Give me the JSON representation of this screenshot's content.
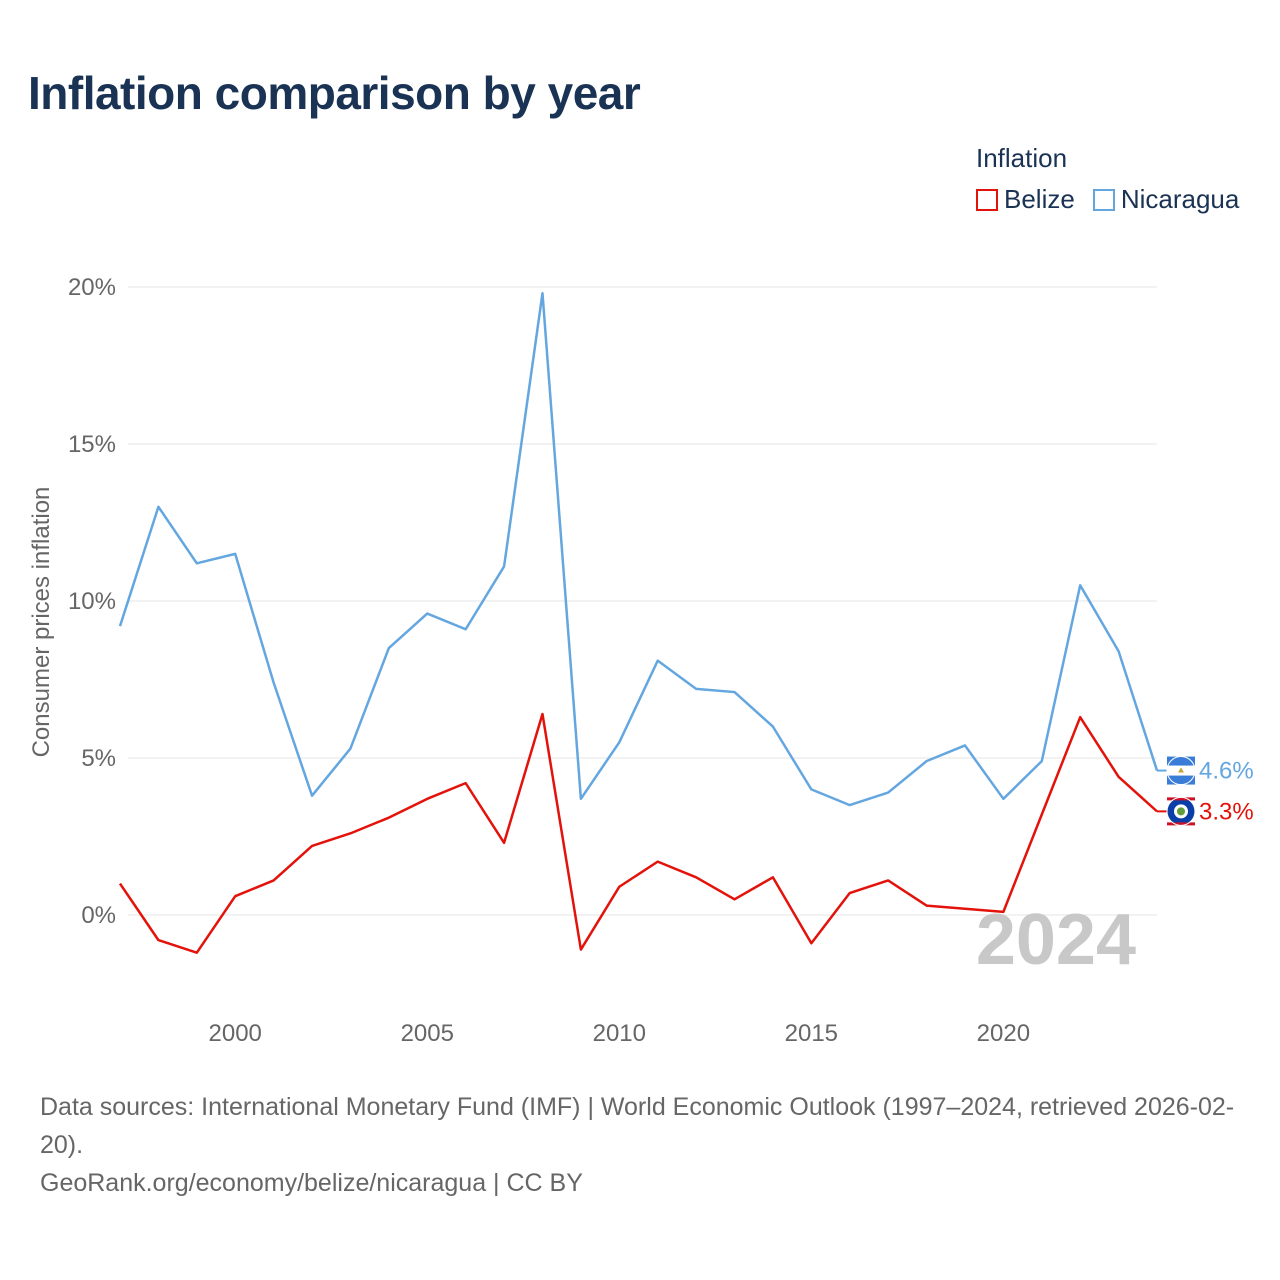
{
  "title": "Inflation comparison by year",
  "legend": {
    "title": "Inflation",
    "items": [
      {
        "name": "Belize",
        "color": "#e3120b"
      },
      {
        "name": "Nicaragua",
        "color": "#64a6e0"
      }
    ]
  },
  "footer": {
    "sources": "Data sources: International Monetary Fund (IMF) | World Economic Outlook (1997–2024, retrieved 2026-02-20).",
    "credit": "GeoRank.org/economy/belize/nicaragua | CC BY"
  },
  "chart_data": {
    "type": "line",
    "title": "Inflation comparison by year",
    "xlabel": "",
    "ylabel": "Consumer prices inflation",
    "xlim": [
      1997,
      2024
    ],
    "ylim": [
      -3,
      20
    ],
    "y_ticks": [
      0,
      5,
      10,
      15,
      20
    ],
    "y_tick_labels": [
      "0%",
      "5%",
      "10%",
      "15%",
      "20%"
    ],
    "x_ticks": [
      2000,
      2005,
      2010,
      2015,
      2020
    ],
    "x_tick_labels": [
      "2000",
      "2005",
      "2010",
      "2015",
      "2020"
    ],
    "year_watermark": "2024",
    "x": [
      1997,
      1998,
      1999,
      2000,
      2001,
      2002,
      2003,
      2004,
      2005,
      2006,
      2007,
      2008,
      2009,
      2010,
      2011,
      2012,
      2013,
      2014,
      2015,
      2016,
      2017,
      2018,
      2019,
      2020,
      2021,
      2022,
      2023,
      2024
    ],
    "series": [
      {
        "name": "Belize",
        "color": "#e3120b",
        "end_label": "3.3%",
        "values": [
          1.0,
          -0.8,
          -1.2,
          0.6,
          1.1,
          2.2,
          2.6,
          3.1,
          3.7,
          4.2,
          2.3,
          6.4,
          -1.1,
          0.9,
          1.7,
          1.2,
          0.5,
          1.2,
          -0.9,
          0.7,
          1.1,
          0.3,
          0.2,
          0.1,
          3.2,
          6.3,
          4.4,
          3.3
        ]
      },
      {
        "name": "Nicaragua",
        "color": "#64a6e0",
        "end_label": "4.6%",
        "values": [
          9.2,
          13.0,
          11.2,
          11.5,
          7.4,
          3.8,
          5.3,
          8.5,
          9.6,
          9.1,
          11.1,
          19.8,
          3.7,
          5.5,
          8.1,
          7.2,
          7.1,
          6.0,
          4.0,
          3.5,
          3.9,
          4.9,
          5.4,
          3.7,
          4.9,
          10.5,
          8.4,
          4.6
        ]
      }
    ],
    "grid": true,
    "legend_position": "top-right"
  }
}
